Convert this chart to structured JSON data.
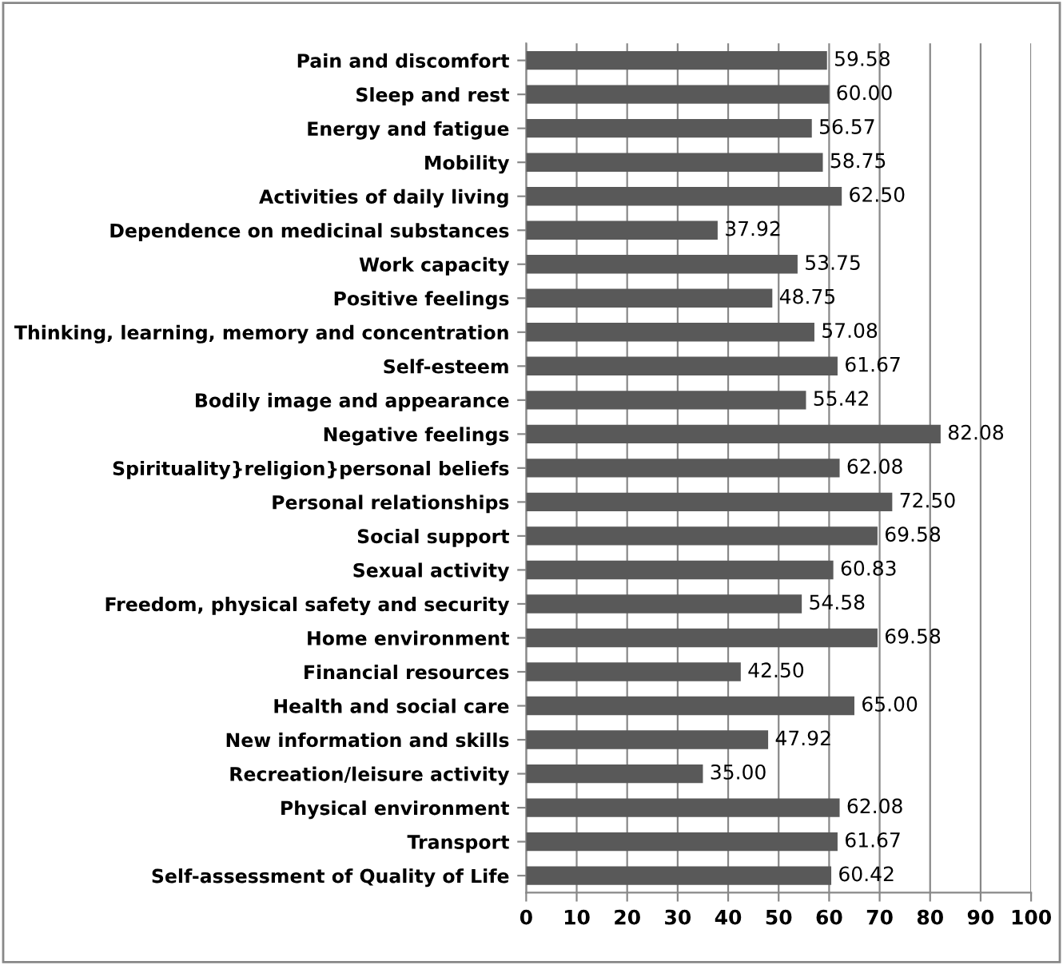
{
  "chart_data": {
    "type": "bar",
    "orientation": "horizontal",
    "categories": [
      "Pain and discomfort",
      "Sleep and rest",
      "Energy and fatigue",
      "Mobility",
      "Activities of daily living",
      "Dependence on medicinal substances",
      "Work capacity",
      "Positive feelings",
      "Thinking, learning, memory and concentration",
      "Self-esteem",
      "Bodily image and appearance",
      "Negative feelings",
      "Spirituality}religion}personal beliefs",
      "Personal relationships",
      "Social support",
      "Sexual activity",
      "Freedom, physical safety and security",
      "Home environment",
      "Financial resources",
      "Health and social care",
      "New information and skills",
      "Recreation/leisure activity",
      "Physical environment",
      "Transport",
      "Self-assessment of Quality of Life"
    ],
    "values": [
      59.58,
      60.0,
      56.57,
      58.75,
      62.5,
      37.92,
      53.75,
      48.75,
      57.08,
      61.67,
      55.42,
      82.08,
      62.08,
      72.5,
      69.58,
      60.83,
      54.58,
      69.58,
      42.5,
      65.0,
      47.92,
      35.0,
      62.08,
      61.67,
      60.42
    ],
    "value_labels": [
      "59.58",
      "60.00",
      "56.57",
      "58.75",
      "62.50",
      "37.92",
      "53.75",
      "48.75",
      "57.08",
      "61.67",
      "55.42",
      "82.08",
      "62.08",
      "72.50",
      "69.58",
      "60.83",
      "54.58",
      "69.58",
      "42.50",
      "65.00",
      "47.92",
      "35.00",
      "62.08",
      "61.67",
      "60.42"
    ],
    "color": "#595959",
    "xlim": [
      0,
      100
    ],
    "xticks": [
      0,
      10,
      20,
      30,
      40,
      50,
      60,
      70,
      80,
      90,
      100
    ],
    "grid": "x",
    "legend": false
  }
}
